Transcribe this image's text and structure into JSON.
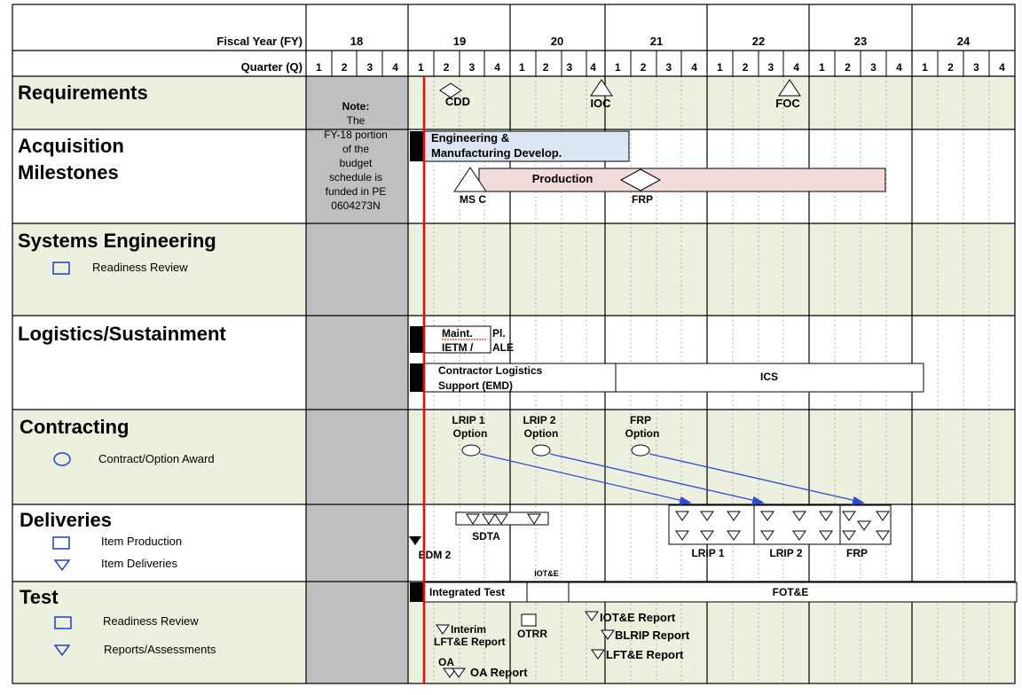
{
  "header": {
    "fy_label": "Fiscal Year (FY)",
    "q_label": "Quarter (Q)",
    "years": [
      "18",
      "19",
      "20",
      "21",
      "22",
      "23",
      "24"
    ],
    "quarters": [
      "1",
      "2",
      "3",
      "4"
    ]
  },
  "rows": {
    "requirements": "Requirements",
    "acquisition_1": "Acquisition",
    "acquisition_2": "Milestones",
    "systems_engineering": "Systems Engineering",
    "se_legend": "Readiness Review",
    "logistics": "Logistics/Sustainment",
    "contracting": "Contracting",
    "contracting_legend": "Contract/Option Award",
    "deliveries": "Deliveries",
    "deliveries_legend_1": "Item Production",
    "deliveries_legend_2": "Item Deliveries",
    "test": "Test",
    "test_legend_1": "Readiness Review",
    "test_legend_2": "Reports/Assessments"
  },
  "note": {
    "l1": "Note:",
    "l2": "The",
    "l3": "FY-18 portion",
    "l4": "of the",
    "l5": "budget",
    "l6": "schedule is",
    "l7": "funded in PE",
    "l8": "0604273N"
  },
  "milestones": {
    "cdd": "CDD",
    "ioc": "IOC",
    "foc": "FOC",
    "emd_1": "Engineering &",
    "emd_2": "Manufacturing Develop.",
    "production": "Production",
    "msc": "MS C",
    "frp": "FRP"
  },
  "logistics": {
    "maint": "Maint.",
    "pl": "Pl.",
    "ietm": "IETM /",
    "ale": "ALE",
    "cls_1": "Contractor Logistics",
    "cls_2": "Support (EMD)",
    "ics": "ICS"
  },
  "contracting": {
    "lrip1_1": "LRIP 1",
    "lrip1_2": "Option",
    "lrip2_1": "LRIP 2",
    "lrip2_2": "Option",
    "frp_1": "FRP",
    "frp_2": "Option"
  },
  "deliveries": {
    "sdta": "SDTA",
    "edm2": "EDM 2",
    "lrip1": "LRIP 1",
    "lrip2": "LRIP 2",
    "frp": "FRP"
  },
  "test": {
    "iote_small": "IOT&E",
    "integrated": "Integrated Test",
    "fote": "FOT&E",
    "interim_1": "Interim",
    "interim_2": "LFT&E Report",
    "otrr": "OTRR",
    "oa": "OA",
    "oa_report": "OA Report",
    "iote_report": "IOT&E Report",
    "blrip_report": "BLRIP Report",
    "lfte_report": "LFT&E Report"
  },
  "colors": {
    "green": "#ebf1de",
    "gray": "#bfbfbf",
    "blue_bar": "#dce6f2",
    "pink_bar": "#f2dcdb",
    "arrow": "#2e4ad6",
    "today": "#ff0000"
  }
}
